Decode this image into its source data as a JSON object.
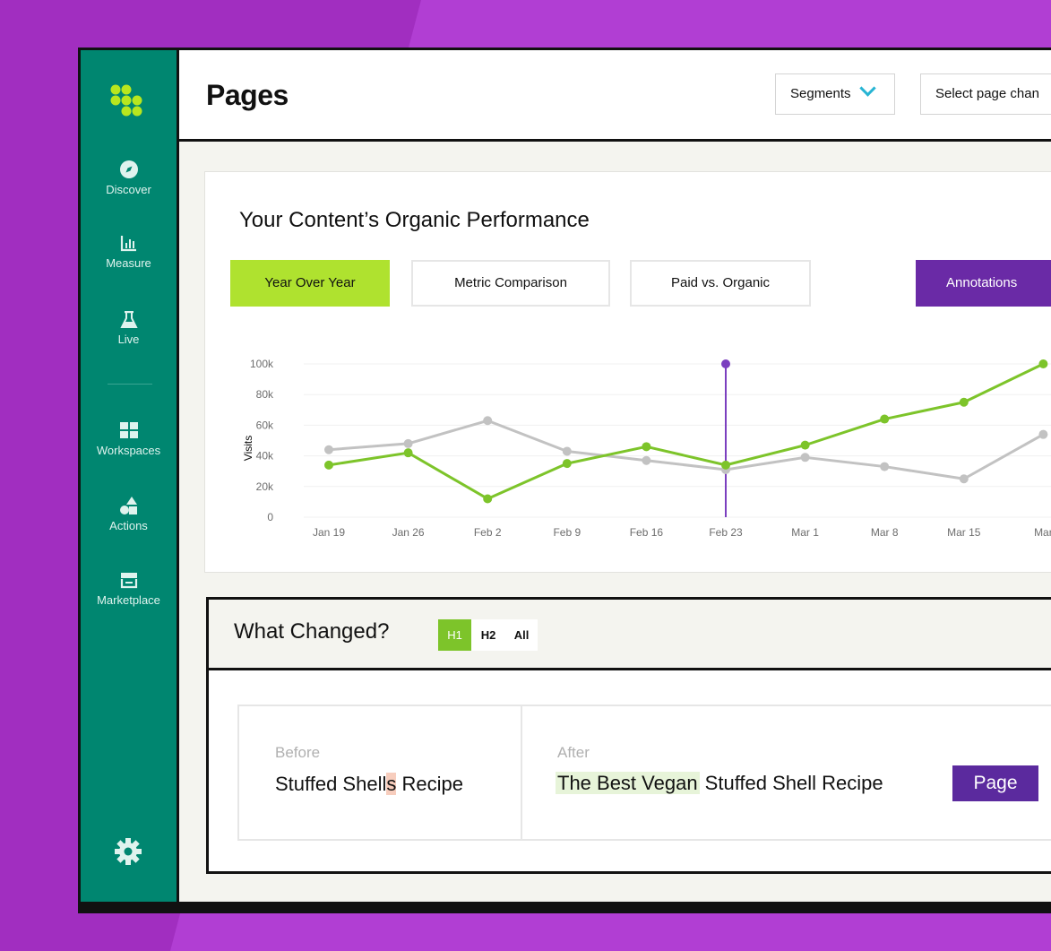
{
  "sidebar": {
    "logo_icon": "dots-logo-icon",
    "items": [
      {
        "label": "Discover",
        "icon": "compass-icon"
      },
      {
        "label": "Measure",
        "icon": "bar-chart-icon"
      },
      {
        "label": "Live",
        "icon": "flask-icon"
      },
      {
        "label": "Workspaces",
        "icon": "grid-icon"
      },
      {
        "label": "Actions",
        "icon": "shapes-icon"
      },
      {
        "label": "Marketplace",
        "icon": "store-icon"
      }
    ],
    "settings_icon": "gear-icon"
  },
  "header": {
    "title": "Pages",
    "segments_label": "Segments",
    "select_change_label": "Select page chan"
  },
  "performance": {
    "title": "Your Content’s Organic Performance",
    "tabs": [
      {
        "label": "Year Over Year",
        "active": true
      },
      {
        "label": "Metric Comparison",
        "active": false
      },
      {
        "label": "Paid vs. Organic",
        "active": false
      }
    ],
    "annotations_label": "Annotations"
  },
  "chart_data": {
    "type": "line",
    "ylabel": "Visits",
    "ylim": [
      0,
      100000
    ],
    "yticks": [
      "100k",
      "80k",
      "60k",
      "40k",
      "20k",
      "0"
    ],
    "categories": [
      "Jan 19",
      "Jan 26",
      "Feb 2",
      "Feb 9",
      "Feb 16",
      "Feb 23",
      "Mar 1",
      "Mar 8",
      "Mar 15",
      "Mar"
    ],
    "series": [
      {
        "color": "#7dc42a",
        "values": [
          34000,
          42000,
          12000,
          35000,
          46000,
          34000,
          47000,
          64000,
          75000,
          100000
        ]
      },
      {
        "color": "#c2c2c2",
        "values": [
          44000,
          48000,
          63000,
          43000,
          37000,
          31000,
          39000,
          33000,
          25000,
          54000
        ]
      }
    ],
    "annotation": {
      "x": "Feb 23",
      "color": "#7b3fbf"
    },
    "colors": {
      "green": "#7dc42a",
      "gray": "#c2c2c2",
      "annotation": "#7b3fbf"
    }
  },
  "changes": {
    "title": "What Changed?",
    "toggles": [
      {
        "label": "H1",
        "active": true
      },
      {
        "label": "H2",
        "active": false
      },
      {
        "label": "All",
        "active": false
      }
    ],
    "before_label": "Before",
    "before_text_a": "Stuffed Shell",
    "before_text_hl": "s",
    "before_text_b": " Recipe",
    "after_label": "After",
    "after_text_hl": "The Best Vegan",
    "after_text_b": " Stuffed Shell Recipe",
    "page_button": "Page"
  }
}
